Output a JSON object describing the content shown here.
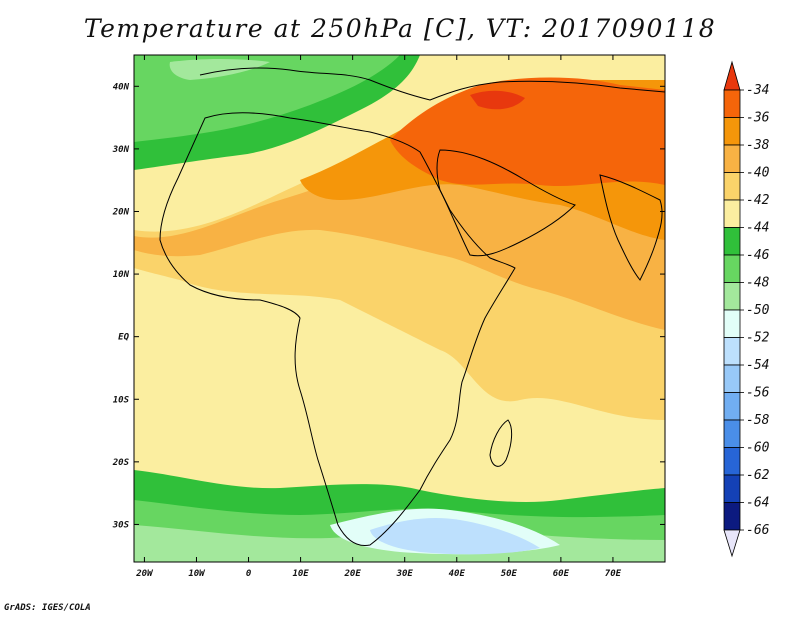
{
  "title": "Temperature at 250hPa [C], VT: 2017090118",
  "credit": "GrADS: IGES/COLA",
  "map": {
    "lon_range": [
      -22,
      80
    ],
    "lat_range": [
      -36,
      45
    ],
    "lat_ticks": [
      {
        "value": 40,
        "label": "40N"
      },
      {
        "value": 30,
        "label": "30N"
      },
      {
        "value": 20,
        "label": "20N"
      },
      {
        "value": 10,
        "label": "10N"
      },
      {
        "value": 0,
        "label": "EQ"
      },
      {
        "value": -10,
        "label": "10S"
      },
      {
        "value": -20,
        "label": "20S"
      },
      {
        "value": -30,
        "label": "30S"
      }
    ],
    "lon_ticks": [
      {
        "value": -20,
        "label": "20W"
      },
      {
        "value": -10,
        "label": "10W"
      },
      {
        "value": 0,
        "label": "0"
      },
      {
        "value": 10,
        "label": "10E"
      },
      {
        "value": 20,
        "label": "20E"
      },
      {
        "value": 30,
        "label": "30E"
      },
      {
        "value": 40,
        "label": "40E"
      },
      {
        "value": 50,
        "label": "50E"
      },
      {
        "value": 60,
        "label": "60E"
      },
      {
        "value": 70,
        "label": "70E"
      }
    ]
  },
  "colorbar": {
    "levels": [
      "-34",
      "-36",
      "-38",
      "-40",
      "-42",
      "-44",
      "-46",
      "-48",
      "-50",
      "-52",
      "-54",
      "-56",
      "-58",
      "-60",
      "-62",
      "-64",
      "-66"
    ],
    "colors": [
      "#e8380e",
      "#f5650a",
      "#f5960a",
      "#f8b244",
      "#fad36a",
      "#fbeea0",
      "#30c03a",
      "#67d661",
      "#a3e89c",
      "#e2fef8",
      "#bde0fd",
      "#98c9f8",
      "#71aef2",
      "#4a8ee8",
      "#2765d6",
      "#1441b6",
      "#0c1a80",
      "#e8e6fa"
    ]
  }
}
